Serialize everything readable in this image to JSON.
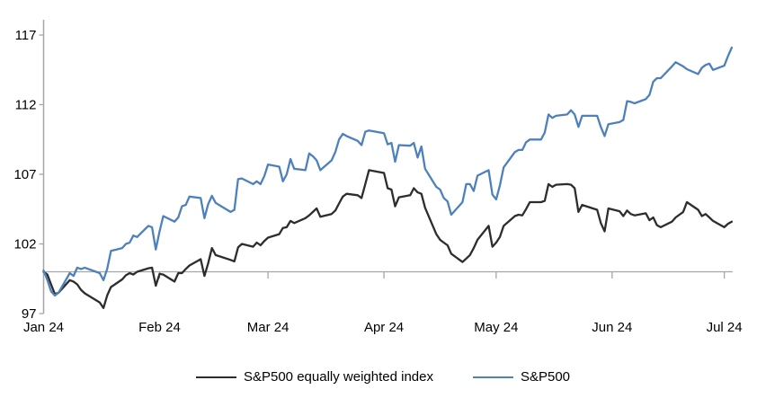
{
  "colors": {
    "background": "#ffffff",
    "axis": "#a6a6a6",
    "baseline": "#a6a6a6",
    "text": "#000000",
    "sp500_blue": "#4e81bb",
    "sp500ew_dark": "#2d2d2d"
  },
  "chart_data": {
    "type": "line",
    "title": "",
    "xlabel": "",
    "ylabel": "",
    "grid": "off",
    "legend_position": "bottom",
    "y_axis": {
      "ticks": [
        97,
        102,
        107,
        112,
        117
      ],
      "range": [
        97,
        117
      ],
      "baseline_value": 100
    },
    "x_axis": {
      "labels": [
        "Jan 24",
        "Feb 24",
        "Mar 24",
        "Apr 24",
        "May 24",
        "Jun 24",
        "Jul 24"
      ],
      "label_days": [
        1,
        32,
        61,
        92,
        122,
        153,
        183
      ],
      "range_days": [
        1,
        185
      ]
    },
    "series": [
      {
        "name": "S&P500 equally weighted index",
        "color": "#2d2d2d",
        "points": [
          [
            1,
            100
          ],
          [
            2,
            99.8
          ],
          [
            3,
            99.1
          ],
          [
            4,
            98.4
          ],
          [
            5,
            98.5
          ],
          [
            8,
            99.4
          ],
          [
            9,
            99.3
          ],
          [
            10,
            99.1
          ],
          [
            11,
            98.7
          ],
          [
            12,
            98.45
          ],
          [
            16,
            97.8
          ],
          [
            17,
            97.4
          ],
          [
            18,
            98.3
          ],
          [
            19,
            98.9
          ],
          [
            22,
            99.45
          ],
          [
            23,
            99.75
          ],
          [
            24,
            99.9
          ],
          [
            25,
            99.8
          ],
          [
            26,
            100.0
          ],
          [
            29,
            100.25
          ],
          [
            30,
            100.3
          ],
          [
            31,
            99.0
          ],
          [
            32,
            99.85
          ],
          [
            33,
            99.8
          ],
          [
            36,
            99.3
          ],
          [
            37,
            99.9
          ],
          [
            38,
            99.9
          ],
          [
            39,
            100.2
          ],
          [
            40,
            100.45
          ],
          [
            43,
            100.9
          ],
          [
            44,
            99.7
          ],
          [
            45,
            100.6
          ],
          [
            46,
            101.7
          ],
          [
            47,
            101.2
          ],
          [
            51,
            100.85
          ],
          [
            52,
            100.75
          ],
          [
            53,
            101.75
          ],
          [
            54,
            102.0
          ],
          [
            57,
            101.8
          ],
          [
            58,
            102.1
          ],
          [
            59,
            101.9
          ],
          [
            60,
            102.2
          ],
          [
            61,
            102.45
          ],
          [
            64,
            102.7
          ],
          [
            65,
            103.15
          ],
          [
            66,
            103.2
          ],
          [
            67,
            103.65
          ],
          [
            68,
            103.5
          ],
          [
            71,
            103.85
          ],
          [
            72,
            104.05
          ],
          [
            73,
            104.3
          ],
          [
            74,
            104.55
          ],
          [
            75,
            103.95
          ],
          [
            78,
            104.15
          ],
          [
            79,
            104.4
          ],
          [
            80,
            104.9
          ],
          [
            81,
            105.4
          ],
          [
            82,
            105.6
          ],
          [
            85,
            105.5
          ],
          [
            86,
            105.3
          ],
          [
            87,
            106.3
          ],
          [
            88,
            107.3
          ],
          [
            92,
            107.1
          ],
          [
            93,
            106.0
          ],
          [
            94,
            105.9
          ],
          [
            95,
            104.7
          ],
          [
            96,
            105.35
          ],
          [
            99,
            105.5
          ],
          [
            100,
            106.0
          ],
          [
            101,
            105.7
          ],
          [
            102,
            105.6
          ],
          [
            103,
            104.6
          ],
          [
            106,
            102.7
          ],
          [
            107,
            102.3
          ],
          [
            108,
            102.1
          ],
          [
            109,
            101.9
          ],
          [
            110,
            101.3
          ],
          [
            113,
            100.7
          ],
          [
            114,
            100.95
          ],
          [
            115,
            101.2
          ],
          [
            116,
            101.7
          ],
          [
            117,
            102.3
          ],
          [
            120,
            103.3
          ],
          [
            121,
            101.8
          ],
          [
            122,
            102.1
          ],
          [
            123,
            102.5
          ],
          [
            124,
            103.3
          ],
          [
            127,
            104.0
          ],
          [
            128,
            104.1
          ],
          [
            129,
            104.05
          ],
          [
            130,
            104.5
          ],
          [
            131,
            105.0
          ],
          [
            134,
            105.0
          ],
          [
            135,
            105.1
          ],
          [
            136,
            106.3
          ],
          [
            137,
            106.1
          ],
          [
            138,
            106.25
          ],
          [
            141,
            106.3
          ],
          [
            142,
            106.25
          ],
          [
            143,
            106.0
          ],
          [
            144,
            104.3
          ],
          [
            145,
            104.8
          ],
          [
            149,
            104.45
          ],
          [
            150,
            103.5
          ],
          [
            151,
            102.9
          ],
          [
            152,
            104.55
          ],
          [
            155,
            104.35
          ],
          [
            156,
            104.0
          ],
          [
            157,
            104.4
          ],
          [
            158,
            104.15
          ],
          [
            159,
            104.05
          ],
          [
            162,
            104.2
          ],
          [
            163,
            103.7
          ],
          [
            164,
            103.9
          ],
          [
            165,
            103.35
          ],
          [
            166,
            103.2
          ],
          [
            169,
            103.6
          ],
          [
            170,
            103.9
          ],
          [
            172,
            104.3
          ],
          [
            173,
            105.0
          ],
          [
            176,
            104.45
          ],
          [
            177,
            104.0
          ],
          [
            178,
            104.15
          ],
          [
            179,
            103.9
          ],
          [
            180,
            103.65
          ],
          [
            183,
            103.2
          ],
          [
            184,
            103.45
          ],
          [
            185,
            103.6
          ]
        ]
      },
      {
        "name": "S&P500",
        "color": "#4e81bb",
        "points": [
          [
            1,
            100.1
          ],
          [
            2,
            99.4
          ],
          [
            3,
            98.6
          ],
          [
            4,
            98.3
          ],
          [
            5,
            98.5
          ],
          [
            8,
            99.9
          ],
          [
            9,
            99.7
          ],
          [
            10,
            100.3
          ],
          [
            11,
            100.2
          ],
          [
            12,
            100.3
          ],
          [
            16,
            99.9
          ],
          [
            17,
            99.4
          ],
          [
            18,
            100.2
          ],
          [
            19,
            101.5
          ],
          [
            22,
            101.7
          ],
          [
            23,
            102.0
          ],
          [
            24,
            102.1
          ],
          [
            25,
            102.6
          ],
          [
            26,
            102.5
          ],
          [
            29,
            103.3
          ],
          [
            30,
            103.2
          ],
          [
            31,
            101.6
          ],
          [
            32,
            102.9
          ],
          [
            33,
            104.0
          ],
          [
            36,
            103.6
          ],
          [
            37,
            103.9
          ],
          [
            38,
            104.7
          ],
          [
            39,
            104.8
          ],
          [
            40,
            105.4
          ],
          [
            43,
            105.3
          ],
          [
            44,
            103.85
          ],
          [
            45,
            104.85
          ],
          [
            46,
            105.45
          ],
          [
            47,
            104.95
          ],
          [
            51,
            104.3
          ],
          [
            52,
            104.45
          ],
          [
            53,
            106.65
          ],
          [
            54,
            106.7
          ],
          [
            57,
            106.3
          ],
          [
            58,
            106.5
          ],
          [
            59,
            106.3
          ],
          [
            60,
            106.85
          ],
          [
            61,
            107.7
          ],
          [
            64,
            107.55
          ],
          [
            65,
            106.5
          ],
          [
            66,
            107.0
          ],
          [
            67,
            108.1
          ],
          [
            68,
            107.4
          ],
          [
            71,
            107.3
          ],
          [
            72,
            108.5
          ],
          [
            73,
            108.3
          ],
          [
            74,
            108.0
          ],
          [
            75,
            107.3
          ],
          [
            78,
            108.0
          ],
          [
            79,
            108.6
          ],
          [
            80,
            109.5
          ],
          [
            81,
            109.9
          ],
          [
            82,
            109.75
          ],
          [
            85,
            109.4
          ],
          [
            86,
            109.1
          ],
          [
            87,
            110.05
          ],
          [
            88,
            110.15
          ],
          [
            92,
            109.95
          ],
          [
            93,
            109.15
          ],
          [
            94,
            109.25
          ],
          [
            95,
            107.9
          ],
          [
            96,
            109.1
          ],
          [
            99,
            109.05
          ],
          [
            100,
            109.25
          ],
          [
            101,
            108.2
          ],
          [
            102,
            109.0
          ],
          [
            103,
            107.4
          ],
          [
            106,
            106.1
          ],
          [
            107,
            105.9
          ],
          [
            108,
            105.3
          ],
          [
            109,
            105.05
          ],
          [
            110,
            104.1
          ],
          [
            113,
            105.0
          ],
          [
            114,
            106.3
          ],
          [
            115,
            106.3
          ],
          [
            116,
            105.8
          ],
          [
            117,
            106.9
          ],
          [
            120,
            107.3
          ],
          [
            121,
            105.55
          ],
          [
            122,
            105.2
          ],
          [
            123,
            106.2
          ],
          [
            124,
            107.5
          ],
          [
            127,
            108.6
          ],
          [
            128,
            108.75
          ],
          [
            129,
            108.75
          ],
          [
            130,
            109.3
          ],
          [
            131,
            109.5
          ],
          [
            134,
            109.5
          ],
          [
            135,
            110.0
          ],
          [
            136,
            111.3
          ],
          [
            137,
            111.05
          ],
          [
            138,
            111.2
          ],
          [
            141,
            111.3
          ],
          [
            142,
            111.6
          ],
          [
            143,
            111.3
          ],
          [
            144,
            110.4
          ],
          [
            145,
            111.2
          ],
          [
            149,
            111.2
          ],
          [
            150,
            110.4
          ],
          [
            151,
            109.75
          ],
          [
            152,
            110.6
          ],
          [
            155,
            110.75
          ],
          [
            156,
            110.9
          ],
          [
            157,
            112.25
          ],
          [
            158,
            112.2
          ],
          [
            159,
            112.1
          ],
          [
            162,
            112.4
          ],
          [
            163,
            112.7
          ],
          [
            164,
            113.65
          ],
          [
            165,
            113.9
          ],
          [
            166,
            113.9
          ],
          [
            169,
            114.75
          ],
          [
            170,
            115.05
          ],
          [
            172,
            114.75
          ],
          [
            173,
            114.55
          ],
          [
            176,
            114.2
          ],
          [
            177,
            114.65
          ],
          [
            178,
            114.85
          ],
          [
            179,
            114.95
          ],
          [
            180,
            114.5
          ],
          [
            183,
            114.8
          ],
          [
            184,
            115.5
          ],
          [
            185,
            116.1
          ]
        ]
      }
    ]
  },
  "legend": {
    "items": [
      {
        "label": "S&P500 equally weighted index",
        "color": "#2d2d2d"
      },
      {
        "label": "S&P500",
        "color": "#4e81bb"
      }
    ]
  }
}
